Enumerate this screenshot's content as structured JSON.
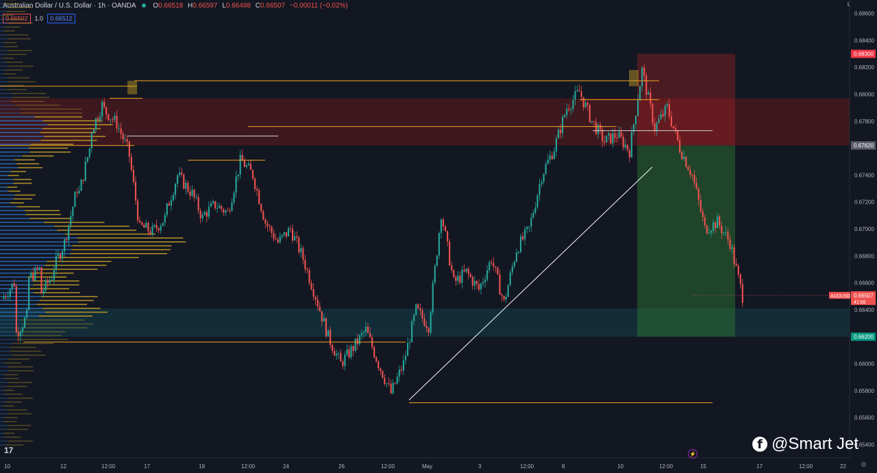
{
  "header": {
    "title": "Australian Dollar / U.S. Dollar · 1h · OANDA",
    "o_label": "O",
    "o_value": "0.66518",
    "h_label": "H",
    "h_value": "0.66597",
    "l_label": "L",
    "l_value": "0.66498",
    "c_label": "C",
    "c_value": "0.66507",
    "change": "−0.00011 (−0.02%)"
  },
  "order": {
    "sell_price": "0.66502",
    "qty": "1.0",
    "buy_price": "0.66512"
  },
  "currency": "USD",
  "colors": {
    "bull": "#26a69a",
    "bear": "#ef5350",
    "stop_zone": "#8b1a1a",
    "target_zone": "#1b5e20",
    "level": "#f5a623",
    "trendline": "#ffffff",
    "vp_blue": "#2f7bd3",
    "vp_gold": "#c9a227"
  },
  "icons": {
    "tv_logo": "tradingview-logo-icon",
    "alert": "lightning-icon",
    "settings": "gear-icon",
    "facebook": "facebook-icon"
  },
  "watermark": "@Smart Jet",
  "tv_logo_text": "17",
  "chart_data": {
    "type": "candlestick",
    "ylim": [
      0.653,
      0.687
    ],
    "y_ticks": [
      "0.68600",
      "0.68400",
      "0.68200",
      "0.68000",
      "0.67800",
      "0.67400",
      "0.67200",
      "0.67000",
      "0.66800",
      "0.66600",
      "0.66400",
      "0.66000",
      "0.65800",
      "0.65600",
      "0.65400"
    ],
    "x_ticks": [
      "10",
      "12",
      "12:00",
      "17",
      "19",
      "12:00",
      "24",
      "26",
      "12:00",
      "May",
      "3",
      "12:00",
      "8",
      "10",
      "12:00",
      "15",
      "17",
      "12:00",
      "22"
    ],
    "price_labels": [
      {
        "text": "0.68300",
        "value": 0.683,
        "bg": "#f23645"
      },
      {
        "text": "0.67620",
        "value": 0.6762,
        "bg": "#5d606b"
      },
      {
        "text": "0.66200",
        "value": 0.662,
        "bg": "#089981"
      }
    ],
    "last_price": {
      "symbol": "AUDUSD",
      "price": "0.66507",
      "countdown": "41:56",
      "value": 0.66507
    },
    "position": {
      "type": "short",
      "entry": 0.6762,
      "stop": 0.683,
      "target": 0.662
    },
    "zones": [
      {
        "kind": "supply",
        "from": 0.6762,
        "to": 0.6797
      },
      {
        "kind": "demand",
        "from": 0.662,
        "to": 0.6641
      }
    ],
    "levels": [
      {
        "price": 0.681
      },
      {
        "price": 0.6797
      },
      {
        "price": 0.6796
      },
      {
        "price": 0.6806
      },
      {
        "price": 0.6776
      },
      {
        "price": 0.6773
      },
      {
        "price": 0.6769
      },
      {
        "price": 0.6762
      },
      {
        "price": 0.6751
      },
      {
        "price": 0.6616
      },
      {
        "price": 0.6571
      }
    ],
    "trendline": {
      "from": 0.6573,
      "to": 0.6746
    },
    "keypoints": [
      [
        0.6648,
        0.666
      ],
      [
        0.662,
        0.6635
      ],
      [
        0.6662,
        0.667
      ],
      [
        0.665,
        0.6665
      ],
      [
        0.6668,
        0.669
      ],
      [
        0.669,
        0.673
      ],
      [
        0.672,
        0.676
      ],
      [
        0.677,
        0.6792
      ],
      [
        0.679,
        0.678
      ],
      [
        0.6782,
        0.676
      ],
      [
        0.6765,
        0.67
      ],
      [
        0.6702,
        0.6698
      ],
      [
        0.6698,
        0.6708
      ],
      [
        0.671,
        0.674
      ],
      [
        0.674,
        0.6728
      ],
      [
        0.673,
        0.6708
      ],
      [
        0.671,
        0.6718
      ],
      [
        0.6718,
        0.6712
      ],
      [
        0.6712,
        0.675
      ],
      [
        0.6752,
        0.674
      ],
      [
        0.674,
        0.6705
      ],
      [
        0.6705,
        0.669
      ],
      [
        0.669,
        0.67
      ],
      [
        0.67,
        0.6678
      ],
      [
        0.6678,
        0.665
      ],
      [
        0.665,
        0.662
      ],
      [
        0.662,
        0.66
      ],
      [
        0.66,
        0.6612
      ],
      [
        0.6612,
        0.6625
      ],
      [
        0.6625,
        0.66
      ],
      [
        0.66,
        0.6578
      ],
      [
        0.6578,
        0.66
      ],
      [
        0.66,
        0.664
      ],
      [
        0.664,
        0.6628
      ],
      [
        0.6628,
        0.6712
      ],
      [
        0.6712,
        0.666
      ],
      [
        0.666,
        0.6668
      ],
      [
        0.6668,
        0.6655
      ],
      [
        0.6655,
        0.6678
      ],
      [
        0.6678,
        0.6645
      ],
      [
        0.6645,
        0.6685
      ],
      [
        0.6685,
        0.67
      ],
      [
        0.67,
        0.674
      ],
      [
        0.674,
        0.676
      ],
      [
        0.676,
        0.679
      ],
      [
        0.679,
        0.6802
      ],
      [
        0.6802,
        0.678
      ],
      [
        0.678,
        0.6765
      ],
      [
        0.6765,
        0.677
      ],
      [
        0.677,
        0.6758
      ],
      [
        0.6758,
        0.6818
      ],
      [
        0.6818,
        0.6775
      ],
      [
        0.6775,
        0.679
      ],
      [
        0.679,
        0.676
      ],
      [
        0.676,
        0.674
      ],
      [
        0.674,
        0.67
      ],
      [
        0.67,
        0.6705
      ],
      [
        0.6705,
        0.669
      ],
      [
        0.669,
        0.665
      ]
    ],
    "volume_profile_note": ""
  }
}
